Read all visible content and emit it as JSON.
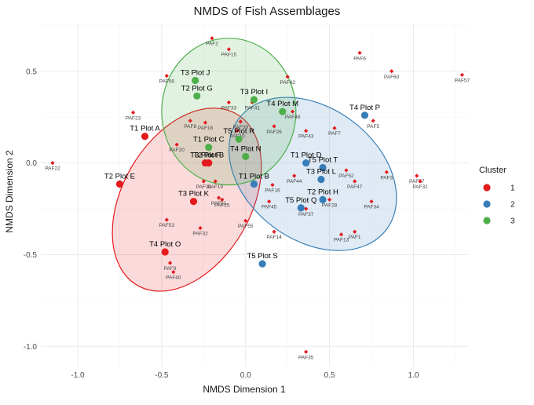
{
  "chart_data": {
    "type": "scatter",
    "title": "NMDS of Fish Assemblages",
    "xlabel": "NMDS Dimension 1",
    "ylabel": "NMDS Dimension 2",
    "xlim": [
      -1.22,
      1.33
    ],
    "ylim": [
      -1.11,
      0.76
    ],
    "x_ticks": [
      -1.0,
      -0.5,
      0.0,
      0.5,
      1.0
    ],
    "x_tick_labels": [
      "-1.0",
      "-0.5",
      "0.0",
      "0.5",
      "1.0"
    ],
    "y_ticks": [
      -1.0,
      -0.5,
      0.0,
      0.5
    ],
    "y_tick_labels": [
      "-1.0",
      "-0.5",
      "0.0",
      "0.5"
    ],
    "grid": true,
    "legend": {
      "title": "Cluster",
      "position": "right",
      "items": [
        {
          "label": "1",
          "color": "#e41a1c"
        },
        {
          "label": "2",
          "color": "#377eb8"
        },
        {
          "label": "3",
          "color": "#4daf4a"
        }
      ]
    },
    "ellipses": [
      {
        "cluster": "1",
        "color": "#e41a1c",
        "center": [
          -0.35,
          -0.2
        ],
        "rx": 0.59,
        "ry": 0.35,
        "angle_deg": -60
      },
      {
        "cluster": "2",
        "color": "#377eb8",
        "center": [
          0.4,
          -0.06
        ],
        "rx": 0.55,
        "ry": 0.36,
        "angle_deg": 37
      },
      {
        "cluster": "3",
        "color": "#4daf4a",
        "center": [
          -0.1,
          0.28
        ],
        "rx": 0.4,
        "ry": 0.4,
        "angle_deg": 0
      }
    ],
    "sites": [
      {
        "label": "T1 Plot A",
        "x": -0.6,
        "y": 0.145,
        "cluster": "1"
      },
      {
        "label": "T2 Plot E",
        "x": -0.75,
        "y": -0.115,
        "cluster": "1"
      },
      {
        "label": "T3 Plot K",
        "x": -0.31,
        "y": -0.21,
        "cluster": "1"
      },
      {
        "label": "T4 Plot O",
        "x": -0.48,
        "y": -0.485,
        "cluster": "1"
      },
      {
        "label": "T3 Plot F",
        "x": -0.24,
        "y": 0.0,
        "cluster": "1"
      },
      {
        "label": "T2 Plot B",
        "x": -0.22,
        "y": 0.0,
        "cluster": "1"
      },
      {
        "label": "T4 Plot P",
        "x": 0.71,
        "y": 0.26,
        "cluster": "2"
      },
      {
        "label": "T5 Plot T",
        "x": 0.46,
        "y": -0.025,
        "cluster": "2"
      },
      {
        "label": "T3 Plot L",
        "x": 0.45,
        "y": -0.09,
        "cluster": "2"
      },
      {
        "label": "T2 Plot H",
        "x": 0.46,
        "y": -0.2,
        "cluster": "2"
      },
      {
        "label": "T5 Plot Q",
        "x": 0.33,
        "y": -0.245,
        "cluster": "2"
      },
      {
        "label": "T1 Plot B",
        "x": 0.05,
        "y": -0.115,
        "cluster": "2"
      },
      {
        "label": "T5 Plot S",
        "x": 0.1,
        "y": -0.55,
        "cluster": "2"
      },
      {
        "label": "T1 Plot D",
        "x": 0.36,
        "y": 0.0,
        "cluster": "2"
      },
      {
        "label": "T3 Plot J",
        "x": -0.3,
        "y": 0.45,
        "cluster": "3"
      },
      {
        "label": "T2 Plot G",
        "x": -0.29,
        "y": 0.365,
        "cluster": "3"
      },
      {
        "label": "T3 Plot I",
        "x": 0.05,
        "y": 0.345,
        "cluster": "3"
      },
      {
        "label": "T1 Plot C",
        "x": -0.22,
        "y": 0.085,
        "cluster": "3"
      },
      {
        "label": "T5 Plot R",
        "x": -0.04,
        "y": 0.13,
        "cluster": "3"
      },
      {
        "label": "T4 Plot N",
        "x": 0.0,
        "y": 0.035,
        "cluster": "3"
      },
      {
        "label": "T4 Plot M",
        "x": 0.22,
        "y": 0.28,
        "cluster": "3"
      }
    ],
    "species": [
      {
        "label": "PAF2",
        "x": -0.2,
        "y": 0.68
      },
      {
        "label": "PAF15",
        "x": -0.1,
        "y": 0.62
      },
      {
        "label": "PAF6",
        "x": 0.68,
        "y": 0.6
      },
      {
        "label": "PAF60",
        "x": 0.87,
        "y": 0.5
      },
      {
        "label": "PAF57",
        "x": 1.29,
        "y": 0.48
      },
      {
        "label": "PAF56",
        "x": -0.47,
        "y": 0.475
      },
      {
        "label": "PAF42",
        "x": 0.25,
        "y": 0.47
      },
      {
        "label": "PAF33",
        "x": -0.1,
        "y": 0.33
      },
      {
        "label": "PAF41",
        "x": 0.04,
        "y": 0.33
      },
      {
        "label": "PAF23",
        "x": -0.67,
        "y": 0.275
      },
      {
        "label": "PAF48",
        "x": 0.28,
        "y": 0.28
      },
      {
        "label": "PAF5",
        "x": 0.76,
        "y": 0.23
      },
      {
        "label": "PAF8",
        "x": -0.33,
        "y": 0.23
      },
      {
        "label": "PAF18",
        "x": -0.24,
        "y": 0.22
      },
      {
        "label": "PAF39",
        "x": -0.03,
        "y": 0.225
      },
      {
        "label": "PAF26",
        "x": 0.17,
        "y": 0.2
      },
      {
        "label": "PAF43",
        "x": 0.36,
        "y": 0.175
      },
      {
        "label": "PAF7",
        "x": 0.53,
        "y": 0.19
      },
      {
        "label": "PAF10",
        "x": -0.05,
        "y": 0.175
      },
      {
        "label": "PAF20",
        "x": -0.41,
        "y": 0.1
      },
      {
        "label": "PAF22",
        "x": -1.15,
        "y": 0.0
      },
      {
        "label": "PAF3",
        "x": 0.84,
        "y": -0.05
      },
      {
        "label": "PAF27",
        "x": 1.02,
        "y": -0.07
      },
      {
        "label": "PAF31",
        "x": 1.04,
        "y": -0.1
      },
      {
        "label": "PAF52",
        "x": 0.6,
        "y": -0.04
      },
      {
        "label": "PAF47",
        "x": 0.65,
        "y": -0.1
      },
      {
        "label": "PAF44",
        "x": 0.29,
        "y": -0.07
      },
      {
        "label": "PAF16",
        "x": 0.16,
        "y": -0.12
      },
      {
        "label": "PAF28",
        "x": 0.5,
        "y": -0.2
      },
      {
        "label": "PAF34",
        "x": 0.75,
        "y": -0.21
      },
      {
        "label": "PAF30",
        "x": -0.25,
        "y": -0.1
      },
      {
        "label": "PAF19",
        "x": -0.18,
        "y": -0.1
      },
      {
        "label": "PAF45",
        "x": 0.14,
        "y": -0.21
      },
      {
        "label": "PAF37",
        "x": 0.36,
        "y": -0.25
      },
      {
        "label": "PAF25",
        "x": -0.14,
        "y": -0.2
      },
      {
        "label": "PAF51",
        "x": -0.16,
        "y": -0.19
      },
      {
        "label": "PAF53",
        "x": -0.47,
        "y": -0.31
      },
      {
        "label": "PAF55",
        "x": 0.0,
        "y": -0.315
      },
      {
        "label": "PAF32",
        "x": -0.27,
        "y": -0.355
      },
      {
        "label": "PAF14",
        "x": 0.17,
        "y": -0.375
      },
      {
        "label": "PAF1",
        "x": 0.65,
        "y": -0.375
      },
      {
        "label": "PAF13",
        "x": 0.57,
        "y": -0.39
      },
      {
        "label": "PAF9",
        "x": -0.45,
        "y": -0.545
      },
      {
        "label": "PAF40",
        "x": -0.43,
        "y": -0.595
      },
      {
        "label": "PAF35",
        "x": 0.36,
        "y": -1.03
      }
    ]
  }
}
